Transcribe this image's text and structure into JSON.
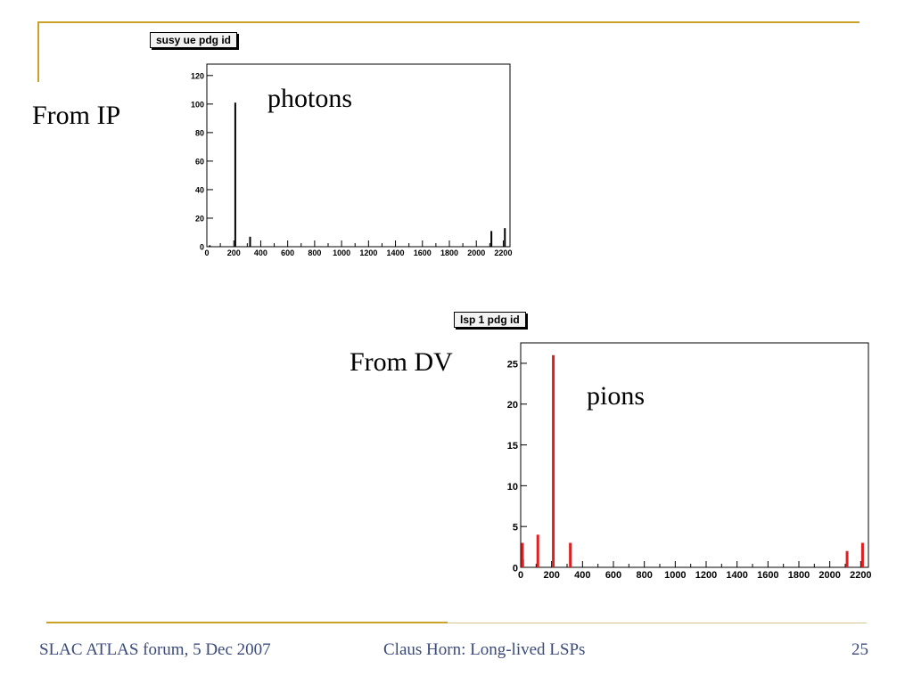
{
  "slide": {
    "label_from_ip": "From IP",
    "label_from_dv": "From DV",
    "annot_photons": "photons",
    "annot_pions": "pions",
    "accent_color": "#c9a227",
    "footer_color": "#3b4a7a"
  },
  "footer": {
    "left": "SLAC ATLAS forum, 5 Dec 2007",
    "center": "Claus Horn: Long-lived LSPs",
    "page": "25"
  },
  "chart_data": [
    {
      "type": "bar",
      "title": "susy ue pdg id",
      "color": "#000000",
      "xlim": [
        0,
        2250
      ],
      "ylim": [
        0,
        128
      ],
      "xticks": [
        0,
        200,
        400,
        600,
        800,
        1000,
        1200,
        1400,
        1600,
        1800,
        2000,
        2200
      ],
      "yticks": [
        0,
        20,
        40,
        60,
        80,
        100,
        120
      ],
      "x": [
        22,
        211,
        321,
        2112,
        2212
      ],
      "values": [
        1,
        101,
        7,
        11,
        13
      ]
    },
    {
      "type": "bar",
      "title": "lsp 1 pdg id",
      "color": "#e02020",
      "xlim": [
        0,
        2250
      ],
      "ylim": [
        0,
        27.5
      ],
      "xticks": [
        0,
        200,
        400,
        600,
        800,
        1000,
        1200,
        1400,
        1600,
        1800,
        2000,
        2200
      ],
      "yticks": [
        0,
        5,
        10,
        15,
        20,
        25
      ],
      "x": [
        11,
        13,
        111,
        211,
        321,
        2112,
        2212
      ],
      "values": [
        3,
        1,
        4,
        26,
        3,
        2,
        3
      ]
    }
  ]
}
